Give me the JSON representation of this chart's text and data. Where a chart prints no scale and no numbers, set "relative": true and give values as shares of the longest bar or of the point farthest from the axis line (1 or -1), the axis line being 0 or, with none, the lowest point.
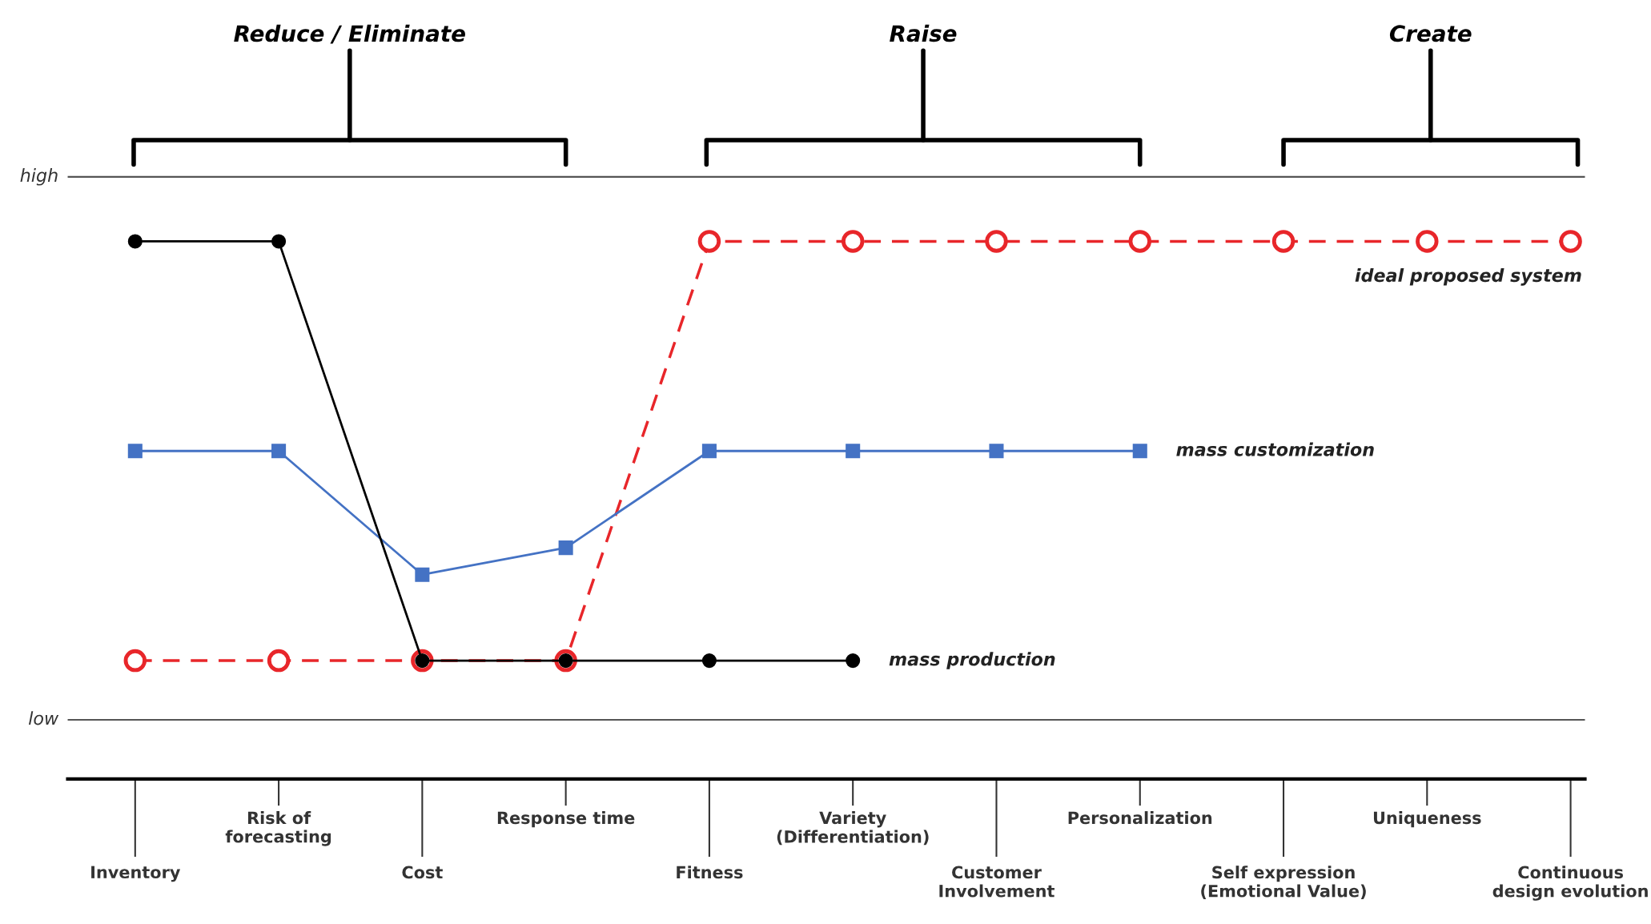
{
  "chart_data": {
    "type": "line",
    "categories": [
      "Inventory",
      "Risk of\nforecasting",
      "Cost",
      "Response time",
      "Fitness",
      "Variety\n(Differentiation)",
      "Customer\nInvolvement",
      "Personalization",
      "Self expression\n(Emotional Value)",
      "Uniqueness",
      "Continuous\ndesign evolution"
    ],
    "series": [
      {
        "name": "ideal proposed system",
        "color": "#e8262a",
        "marker": "circle",
        "line_style": "dashed",
        "values": [
          0.22,
          0.22,
          0.22,
          0.22,
          1,
          1,
          1,
          1,
          1,
          1,
          1
        ]
      },
      {
        "name": "mass customization",
        "color": "#4472c4",
        "marker": "square",
        "line_style": "solid",
        "values": [
          0.61,
          0.61,
          0.38,
          0.43,
          0.61,
          0.61,
          0.61,
          0.61,
          null,
          null,
          null
        ]
      },
      {
        "name": "mass production",
        "color": "#000000",
        "marker": "circle",
        "line_style": "solid",
        "values": [
          1,
          1,
          0.22,
          0.22,
          0.22,
          0.22,
          null,
          null,
          null,
          null,
          null
        ]
      }
    ],
    "relative": true,
    "ref_lines": [
      {
        "axis": "y",
        "value": 1.12,
        "label": "high",
        "color": "#555555"
      },
      {
        "axis": "y",
        "value": 0.11,
        "label": "low",
        "color": "#555555"
      }
    ],
    "legend": false,
    "annotations": [
      "Reduce / Eliminate",
      "Raise",
      "Create"
    ]
  }
}
